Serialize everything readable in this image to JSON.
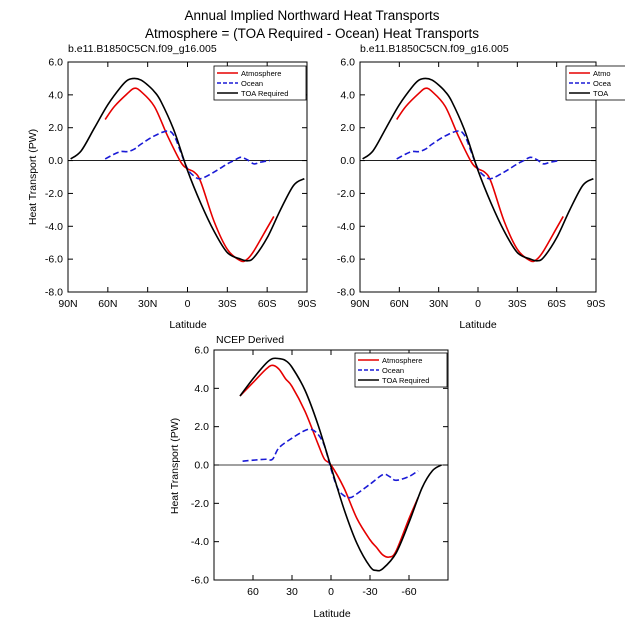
{
  "figure": {
    "title_line1": "Annual Implied Northward Heat Transports",
    "title_line2": "Atmosphere = (TOA Required - Ocean) Heat Transports"
  },
  "chart_data": [
    {
      "type": "line",
      "title": "b.e11.B1850C5CN.f09_g16.005",
      "xlabel": "Latitude",
      "ylabel": "Heat Transport (PW)",
      "xlim": [
        90,
        -90
      ],
      "ylim": [
        -8,
        6
      ],
      "xticks": [
        90,
        60,
        30,
        0,
        -30,
        -60,
        -90
      ],
      "xtick_labels": [
        "90N",
        "60N",
        "30N",
        "0",
        "30S",
        "60S",
        "90S"
      ],
      "yticks": [
        6,
        4,
        2,
        0,
        -2,
        -4,
        -6,
        -8
      ],
      "ytick_labels": [
        "6.0",
        "4.0",
        "2.0",
        "0.0",
        "-2.0",
        "-4.0",
        "-6.0",
        "-8.0"
      ],
      "legend": "top-right",
      "series": [
        {
          "name": "Atmosphere",
          "color": "#e60000",
          "dash": "solid",
          "x": [
            62,
            55,
            45,
            40,
            35,
            25,
            15,
            5,
            0,
            -5,
            -10,
            -20,
            -30,
            -40,
            -45,
            -50,
            -60,
            -65
          ],
          "y": [
            2.5,
            3.3,
            4.1,
            4.4,
            4.2,
            3.3,
            1.5,
            -0.1,
            -0.5,
            -0.7,
            -1.3,
            -3.7,
            -5.4,
            -6.1,
            -6.0,
            -5.5,
            -4.1,
            -3.4
          ]
        },
        {
          "name": "Ocean",
          "color": "#1a1ad6",
          "dash": "dashed",
          "x": [
            62,
            55,
            50,
            45,
            40,
            35,
            25,
            15,
            10,
            5,
            0,
            -5,
            -10,
            -20,
            -30,
            -35,
            -40,
            -45,
            -50,
            -55,
            -62
          ],
          "y": [
            0.1,
            0.4,
            0.55,
            0.55,
            0.7,
            1.0,
            1.5,
            1.8,
            1.5,
            0.5,
            -0.5,
            -0.95,
            -1.1,
            -0.7,
            -0.2,
            0.0,
            0.2,
            0.05,
            -0.2,
            -0.1,
            0.0
          ]
        },
        {
          "name": "TOA Required",
          "color": "#000000",
          "dash": "solid",
          "x": [
            88,
            80,
            70,
            60,
            50,
            45,
            40,
            35,
            30,
            25,
            20,
            10,
            0,
            -10,
            -20,
            -30,
            -40,
            -45,
            -50,
            -60,
            -70,
            -80,
            -88
          ],
          "y": [
            0.1,
            0.6,
            2.0,
            3.4,
            4.5,
            4.9,
            5.0,
            4.9,
            4.6,
            4.2,
            3.6,
            1.8,
            -0.6,
            -2.6,
            -4.3,
            -5.6,
            -6.0,
            -6.1,
            -5.9,
            -4.7,
            -3.0,
            -1.5,
            -1.1
          ]
        }
      ]
    },
    {
      "type": "line",
      "title": "b.e11.B1850C5CN.f09_g16.005",
      "xlabel": "Latitude",
      "ylabel": "",
      "xlim": [
        90,
        -90
      ],
      "ylim": [
        -8,
        6
      ],
      "xticks": [
        90,
        60,
        30,
        0,
        -30,
        -60,
        -90
      ],
      "xtick_labels": [
        "90N",
        "60N",
        "30N",
        "0",
        "30S",
        "60S",
        "90S"
      ],
      "yticks": [
        6,
        4,
        2,
        0,
        -2,
        -4,
        -6,
        -8
      ],
      "ytick_labels": [
        "6.0",
        "4.0",
        "2.0",
        "0.0",
        "-2.0",
        "-4.0",
        "-6.0",
        "-8.0"
      ],
      "legend": "top-right (clipped)",
      "legend_labels": [
        "Atmo",
        "Ocea",
        "TOA"
      ],
      "series": [
        {
          "name": "Atmosphere",
          "color": "#e60000",
          "dash": "solid",
          "x": [
            62,
            55,
            45,
            40,
            35,
            25,
            15,
            5,
            0,
            -5,
            -10,
            -20,
            -30,
            -40,
            -45,
            -50,
            -60,
            -65
          ],
          "y": [
            2.5,
            3.3,
            4.1,
            4.4,
            4.2,
            3.3,
            1.5,
            -0.1,
            -0.5,
            -0.7,
            -1.3,
            -3.7,
            -5.4,
            -6.1,
            -6.0,
            -5.5,
            -4.1,
            -3.4
          ]
        },
        {
          "name": "Ocean",
          "color": "#1a1ad6",
          "dash": "dashed",
          "x": [
            62,
            55,
            50,
            45,
            40,
            35,
            25,
            15,
            10,
            5,
            0,
            -5,
            -10,
            -20,
            -30,
            -35,
            -40,
            -45,
            -50,
            -55,
            -62
          ],
          "y": [
            0.1,
            0.4,
            0.55,
            0.55,
            0.7,
            1.0,
            1.5,
            1.8,
            1.5,
            0.5,
            -0.5,
            -0.95,
            -1.1,
            -0.7,
            -0.2,
            0.0,
            0.2,
            0.05,
            -0.2,
            -0.1,
            0.0
          ]
        },
        {
          "name": "TOA Required",
          "color": "#000000",
          "dash": "solid",
          "x": [
            88,
            80,
            70,
            60,
            50,
            45,
            40,
            35,
            30,
            25,
            20,
            10,
            0,
            -10,
            -20,
            -30,
            -40,
            -45,
            -50,
            -60,
            -70,
            -80,
            -88
          ],
          "y": [
            0.1,
            0.6,
            2.0,
            3.4,
            4.5,
            4.9,
            5.0,
            4.9,
            4.6,
            4.2,
            3.6,
            1.8,
            -0.6,
            -2.6,
            -4.3,
            -5.6,
            -6.0,
            -6.1,
            -5.9,
            -4.7,
            -3.0,
            -1.5,
            -1.1
          ]
        }
      ]
    },
    {
      "type": "line",
      "title": "NCEP Derived",
      "xlabel": "Latitude",
      "ylabel": "Heat Transport (PW)",
      "xlim": [
        90,
        -90
      ],
      "ylim": [
        -6,
        6
      ],
      "xticks": [
        60,
        30,
        0,
        -30,
        -60
      ],
      "xtick_labels": [
        "60",
        "30",
        "0",
        "-30",
        "-60"
      ],
      "yticks": [
        6,
        4,
        2,
        0,
        -2,
        -4,
        -6
      ],
      "ytick_labels": [
        "6.0",
        "4.0",
        "2.0",
        "0.0",
        "-2.0",
        "-4.0",
        "-6.0"
      ],
      "legend": "top-right",
      "series": [
        {
          "name": "Atmosphere",
          "color": "#e60000",
          "dash": "solid",
          "x": [
            70,
            60,
            50,
            45,
            40,
            35,
            30,
            20,
            10,
            5,
            0,
            -10,
            -20,
            -30,
            -35,
            -40,
            -45,
            -50,
            -60,
            -67
          ],
          "y": [
            3.6,
            4.3,
            5.0,
            5.2,
            5.0,
            4.5,
            4.1,
            2.8,
            1.1,
            0.3,
            0.0,
            -1.2,
            -2.8,
            -3.9,
            -4.3,
            -4.7,
            -4.8,
            -4.5,
            -2.8,
            -1.7
          ]
        },
        {
          "name": "Ocean",
          "color": "#1a1ad6",
          "dash": "dashed",
          "x": [
            68,
            60,
            50,
            45,
            40,
            30,
            20,
            15,
            10,
            5,
            0,
            -5,
            -10,
            -15,
            -20,
            -30,
            -40,
            -45,
            -50,
            -60,
            -67
          ],
          "y": [
            0.2,
            0.25,
            0.3,
            0.3,
            0.9,
            1.4,
            1.8,
            1.85,
            1.6,
            1.0,
            -0.2,
            -1.2,
            -1.6,
            -1.7,
            -1.5,
            -1.0,
            -0.5,
            -0.6,
            -0.8,
            -0.6,
            -0.3
          ]
        },
        {
          "name": "TOA Required",
          "color": "#000000",
          "dash": "solid",
          "x": [
            70,
            60,
            50,
            45,
            40,
            35,
            30,
            20,
            10,
            0,
            -10,
            -20,
            -30,
            -35,
            -40,
            -50,
            -60,
            -70,
            -78,
            -85
          ],
          "y": [
            3.6,
            4.5,
            5.3,
            5.55,
            5.55,
            5.45,
            5.1,
            3.9,
            2.1,
            -0.1,
            -2.3,
            -4.1,
            -5.3,
            -5.5,
            -5.4,
            -4.6,
            -3.0,
            -1.2,
            -0.3,
            0.0
          ]
        }
      ]
    }
  ]
}
